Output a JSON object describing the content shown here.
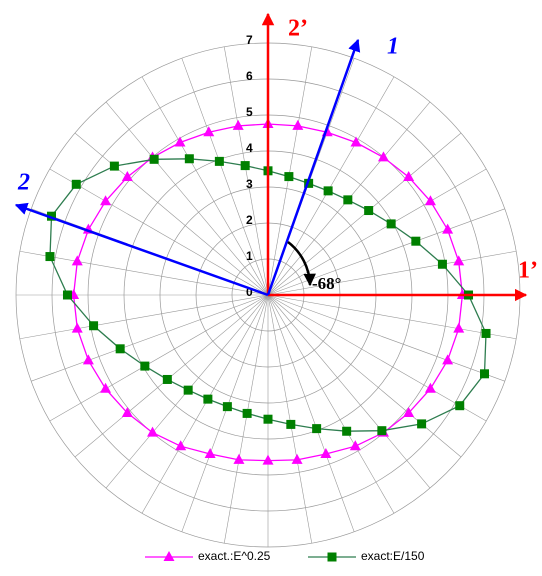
{
  "chart_data": {
    "type": "polar",
    "rlim": [
      0,
      7
    ],
    "rticks": [
      0,
      1,
      2,
      3,
      4,
      5,
      6,
      7
    ],
    "theta": [
      0,
      10,
      20,
      30,
      40,
      50,
      60,
      70,
      80,
      90,
      100,
      110,
      120,
      130,
      140,
      150,
      160,
      170,
      180,
      190,
      200,
      210,
      220,
      230,
      240,
      250,
      260,
      270,
      280,
      290,
      300,
      310,
      320,
      330,
      340,
      350
    ],
    "series": [
      {
        "name": "exact.:E^0.25",
        "color": "#ff00ff",
        "marker": "triangle",
        "values": [
          5.4,
          5.38,
          5.31,
          5.21,
          5.1,
          4.99,
          4.89,
          4.81,
          4.77,
          4.75,
          4.77,
          4.81,
          4.89,
          4.99,
          5.1,
          5.21,
          5.31,
          5.38,
          5.4,
          5.38,
          5.31,
          5.21,
          5.1,
          4.99,
          4.85,
          4.7,
          4.65,
          4.6,
          4.65,
          4.7,
          4.85,
          4.99,
          5.1,
          5.21,
          5.31,
          5.38
        ]
      },
      {
        "name": "exact:E/150",
        "color": "#008000",
        "marker": "square",
        "values": [
          5.57,
          4.92,
          4.37,
          3.95,
          3.65,
          3.45,
          3.34,
          3.3,
          3.34,
          3.45,
          3.65,
          3.95,
          4.37,
          4.92,
          5.57,
          6.15,
          6.4,
          6.15,
          5.57,
          4.92,
          4.37,
          3.95,
          3.65,
          3.45,
          3.34,
          3.3,
          3.34,
          3.45,
          3.65,
          3.95,
          4.37,
          4.92,
          5.57,
          6.15,
          6.4,
          6.15
        ]
      }
    ],
    "annotations": [
      "1",
      "2",
      "1’",
      "2’",
      "-68°"
    ]
  }
}
